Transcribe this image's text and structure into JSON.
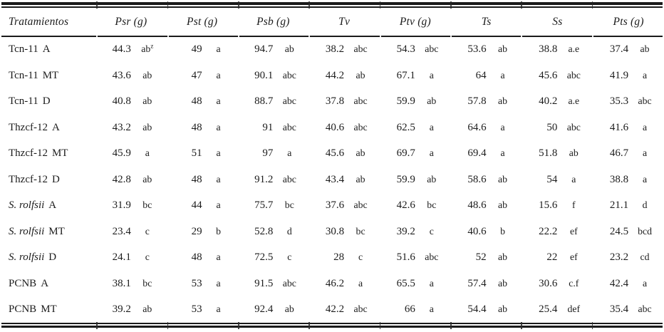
{
  "colors": {
    "text": "#1c1c1c",
    "rule": "#1a1a1a",
    "background": "#ffffff"
  },
  "table": {
    "header": {
      "treatment": "Tratamientos",
      "columns": [
        "Psr (g)",
        "Pst (g)",
        "Psb (g)",
        "Tv",
        "Ptv (g)",
        "Ts",
        "Ss",
        "Pts (g)"
      ]
    },
    "rows": [
      {
        "name": "Tcn-11",
        "suffix": "A",
        "italic": false,
        "cells": [
          [
            "44.3",
            "ab^z"
          ],
          [
            "49",
            "a"
          ],
          [
            "94.7",
            "ab"
          ],
          [
            "38.2",
            "abc"
          ],
          [
            "54.3",
            "abc"
          ],
          [
            "53.6",
            "ab"
          ],
          [
            "38.8",
            "a.e"
          ],
          [
            "37.4",
            "ab"
          ]
        ]
      },
      {
        "name": "Tcn-11",
        "suffix": "MT",
        "italic": false,
        "cells": [
          [
            "43.6",
            "ab"
          ],
          [
            "47",
            "a"
          ],
          [
            "90.1",
            "abc"
          ],
          [
            "44.2",
            "ab"
          ],
          [
            "67.1",
            "a"
          ],
          [
            "64",
            "a"
          ],
          [
            "45.6",
            "abc"
          ],
          [
            "41.9",
            "a"
          ]
        ]
      },
      {
        "name": "Tcn-11",
        "suffix": "D",
        "italic": false,
        "cells": [
          [
            "40.8",
            "ab"
          ],
          [
            "48",
            "a"
          ],
          [
            "88.7",
            "abc"
          ],
          [
            "37.8",
            "abc"
          ],
          [
            "59.9",
            "ab"
          ],
          [
            "57.8",
            "ab"
          ],
          [
            "40.2",
            "a.e"
          ],
          [
            "35.3",
            "abc"
          ]
        ]
      },
      {
        "name": "Thzcf-12",
        "suffix": "A",
        "italic": false,
        "cells": [
          [
            "43.2",
            "ab"
          ],
          [
            "48",
            "a"
          ],
          [
            "91",
            "abc"
          ],
          [
            "40.6",
            "abc"
          ],
          [
            "62.5",
            "a"
          ],
          [
            "64.6",
            "a"
          ],
          [
            "50",
            "abc"
          ],
          [
            "41.6",
            "a"
          ]
        ]
      },
      {
        "name": "Thzcf-12",
        "suffix": "MT",
        "italic": false,
        "cells": [
          [
            "45.9",
            "a"
          ],
          [
            "51",
            "a"
          ],
          [
            "97",
            "a"
          ],
          [
            "45.6",
            "ab"
          ],
          [
            "69.7",
            "a"
          ],
          [
            "69.4",
            "a"
          ],
          [
            "51.8",
            "ab"
          ],
          [
            "46.7",
            "a"
          ]
        ]
      },
      {
        "name": "Thzcf-12",
        "suffix": "D",
        "italic": false,
        "cells": [
          [
            "42.8",
            "ab"
          ],
          [
            "48",
            "a"
          ],
          [
            "91.2",
            "abc"
          ],
          [
            "43.4",
            "ab"
          ],
          [
            "59.9",
            "ab"
          ],
          [
            "58.6",
            "ab"
          ],
          [
            "54",
            "a"
          ],
          [
            "38.8",
            "a"
          ]
        ]
      },
      {
        "name": "S. rolfsii",
        "suffix": "A",
        "italic": true,
        "cells": [
          [
            "31.9",
            "bc"
          ],
          [
            "44",
            "a"
          ],
          [
            "75.7",
            "bc"
          ],
          [
            "37.6",
            "abc"
          ],
          [
            "42.6",
            "bc"
          ],
          [
            "48.6",
            "ab"
          ],
          [
            "15.6",
            "f"
          ],
          [
            "21.1",
            "d"
          ]
        ]
      },
      {
        "name": "S. rolfsii",
        "suffix": "MT",
        "italic": true,
        "cells": [
          [
            "23.4",
            "c"
          ],
          [
            "29",
            "b"
          ],
          [
            "52.8",
            "d"
          ],
          [
            "30.8",
            "bc"
          ],
          [
            "39.2",
            "c"
          ],
          [
            "40.6",
            "b"
          ],
          [
            "22.2",
            "ef"
          ],
          [
            "24.5",
            "bcd"
          ]
        ]
      },
      {
        "name": "S. rolfsii",
        "suffix": "D",
        "italic": true,
        "cells": [
          [
            "24.1",
            "c"
          ],
          [
            "48",
            "a"
          ],
          [
            "72.5",
            "c"
          ],
          [
            "28",
            "c"
          ],
          [
            "51.6",
            "abc"
          ],
          [
            "52",
            "ab"
          ],
          [
            "22",
            "ef"
          ],
          [
            "23.2",
            "cd"
          ]
        ]
      },
      {
        "name": "PCNB",
        "suffix": "A",
        "italic": false,
        "cells": [
          [
            "38.1",
            "bc"
          ],
          [
            "53",
            "a"
          ],
          [
            "91.5",
            "abc"
          ],
          [
            "46.2",
            "a"
          ],
          [
            "65.5",
            "a"
          ],
          [
            "57.4",
            "ab"
          ],
          [
            "30.6",
            "c.f"
          ],
          [
            "42.4",
            "a"
          ]
        ]
      },
      {
        "name": "PCNB",
        "suffix": "MT",
        "italic": false,
        "cells": [
          [
            "39.2",
            "ab"
          ],
          [
            "53",
            "a"
          ],
          [
            "92.4",
            "ab"
          ],
          [
            "42.2",
            "abc"
          ],
          [
            "66",
            "a"
          ],
          [
            "54.4",
            "ab"
          ],
          [
            "25.4",
            "def"
          ],
          [
            "35.4",
            "abc"
          ]
        ]
      }
    ]
  }
}
